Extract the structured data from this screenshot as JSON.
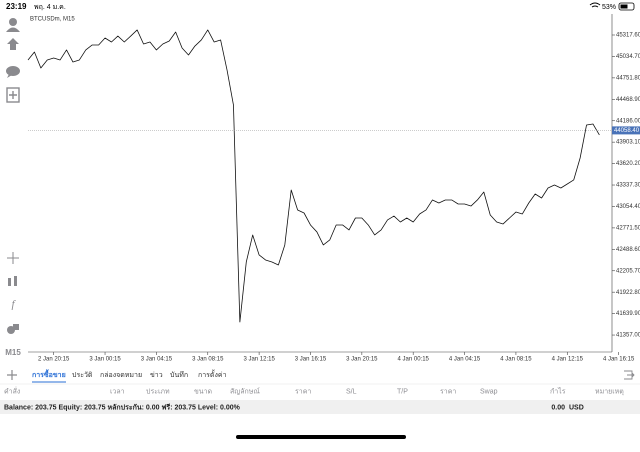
{
  "status_bar": {
    "time": "23:19",
    "date": "พฤ. 4 ม.ค.",
    "battery": "53%"
  },
  "toolbar": {
    "timeframe": "M15"
  },
  "chart_data": {
    "type": "line",
    "title": "BTCUSDm, M15",
    "color": "#111111",
    "categories": [
      null,
      null,
      null,
      null,
      "2 Jan 20:15",
      null,
      null,
      null,
      null,
      null,
      null,
      null,
      "3 Jan 00:15",
      null,
      null,
      null,
      null,
      null,
      null,
      null,
      "3 Jan 04:15",
      null,
      null,
      null,
      null,
      null,
      null,
      null,
      "3 Jan 08:15",
      null,
      null,
      null,
      null,
      null,
      null,
      null,
      "3 Jan 12:15",
      null,
      null,
      null,
      null,
      null,
      null,
      null,
      "3 Jan 16:15",
      null,
      null,
      null,
      null,
      null,
      null,
      null,
      "3 Jan 20:15",
      null,
      null,
      null,
      null,
      null,
      null,
      null,
      "4 Jan 00:15",
      null,
      null,
      null,
      null,
      null,
      null,
      null,
      "4 Jan 04:15",
      null,
      null,
      null,
      null,
      null,
      null,
      null,
      "4 Jan 08:15",
      null,
      null,
      null,
      null,
      null,
      null,
      null,
      "4 Jan 12:15",
      null,
      null,
      null,
      null,
      null,
      null,
      null,
      "4 Jan 16:15"
    ],
    "values": [
      44988,
      45093,
      44882,
      44988,
      45014,
      44988,
      45120,
      44961,
      44988,
      45120,
      45186,
      45186,
      45278,
      45225,
      45304,
      45225,
      45304,
      45384,
      45199,
      45225,
      45120,
      45199,
      45238,
      45357,
      45146,
      45054,
      45172,
      45252,
      45384,
      45225,
      45252,
      44856,
      44394,
      41529,
      42321,
      42678,
      42414,
      42348,
      42321,
      42282,
      42546,
      43272,
      43008,
      42968,
      42810,
      42718,
      42546,
      42612,
      42810,
      42810,
      42744,
      42902,
      42902,
      42810,
      42678,
      42744,
      42876,
      42928,
      42849,
      42902,
      42849,
      42955,
      43008,
      43140,
      43100,
      43140,
      43140,
      43087,
      43087,
      43060,
      43140,
      43245,
      42942,
      42849,
      42823,
      42902,
      42981,
      42955,
      43100,
      43219,
      43166,
      43298,
      43338,
      43298,
      43351,
      43404,
      43694,
      44130,
      44143,
      43998,
      null,
      null,
      null
    ],
    "ylim": [
      41133.2,
      45594.8
    ],
    "yticks": [
      {
        "value": 45317.6,
        "label": "45317.60"
      },
      {
        "value": 45034.7,
        "label": "45034.70"
      },
      {
        "value": 44751.8,
        "label": "44751.80"
      },
      {
        "value": 44468.9,
        "label": "44468.90"
      },
      {
        "value": 44186,
        "label": "44186.00"
      },
      {
        "value": 43903.1,
        "label": "43903.10"
      },
      {
        "value": 43620.2,
        "label": "43620.20"
      },
      {
        "value": 43337.3,
        "label": "43337.30"
      },
      {
        "value": 43054.4,
        "label": "43054.40"
      },
      {
        "value": 42771.5,
        "label": "42771.50"
      },
      {
        "value": 42488.6,
        "label": "42488.60"
      },
      {
        "value": 42205.7,
        "label": "42205.70"
      },
      {
        "value": 41922.8,
        "label": "41922.80"
      },
      {
        "value": 41639.9,
        "label": "41639.90"
      },
      {
        "value": 41357,
        "label": "41357.00"
      }
    ],
    "last_price": {
      "value": 44058.4,
      "label": "44058.40"
    }
  },
  "tabs": [
    "การซื้อขาย",
    "ประวัติ",
    "กล่องจดหมาย",
    "ข่าว",
    "บันทึก",
    "การตั้งค่า"
  ],
  "table": {
    "columns": [
      "คำสั่ง",
      "เวลา",
      "ประเภท",
      "ขนาด",
      "สัญลักษณ์",
      "ราคา",
      "S/L",
      "T/P",
      "ราคา",
      "Swap",
      "กำไร",
      "หมายเหตุ"
    ]
  },
  "account": {
    "summary": "Balance: 203.75 Equity: 203.75 หลักประกัน: 0.00 ฟรี: 203.75 Level: 0.00%",
    "profit": "0.00",
    "currency": "USD"
  }
}
